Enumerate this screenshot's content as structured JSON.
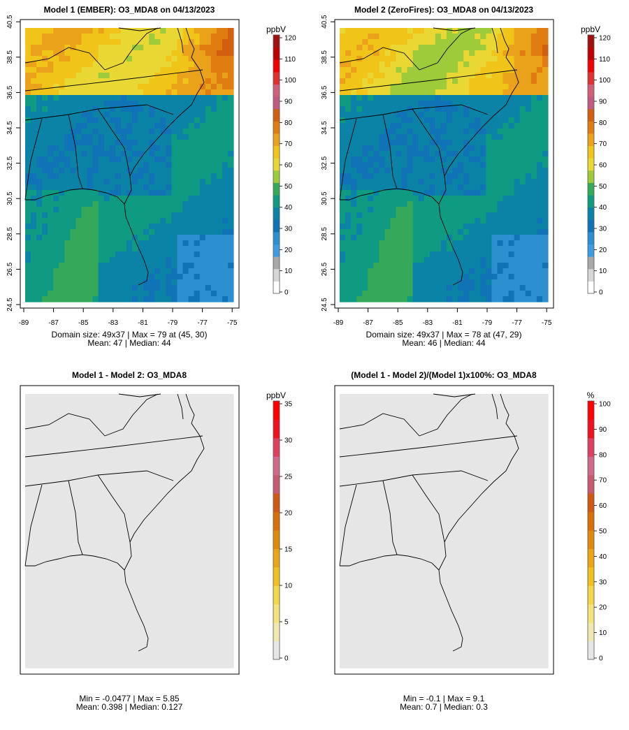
{
  "panels": [
    {
      "id": "p1",
      "title": "Model 1 (EMBER): O3_MDA8 on 04/13/2023",
      "stats_line1": "Domain size: 49x37 | Max = 79 at (45, 30)",
      "stats_line2": "Mean: 47 |  Median: 44",
      "colorbar": {
        "unit": "ppbV",
        "ticks": [
          "0",
          "10",
          "20",
          "30",
          "40",
          "50",
          "60",
          "70",
          "80",
          "90",
          "100",
          "110",
          "120"
        ],
        "max": 120,
        "colors": [
          "#ffffff",
          "#d6d6d6",
          "#a8a8a8",
          "#3e9be0",
          "#2b8fd0",
          "#0f73b6",
          "#0a83a6",
          "#0f9b82",
          "#35a85a",
          "#9dcb3a",
          "#e9d733",
          "#f0c419",
          "#e9a21a",
          "#e07d10",
          "#d06010",
          "#c05a80",
          "#d0607a",
          "#e03030",
          "#f00000",
          "#c00000",
          "#a01010"
        ]
      },
      "field": "model1"
    },
    {
      "id": "p2",
      "title": "Model 2 (ZeroFires): O3_MDA8 on 04/13/2023",
      "stats_line1": "Domain size: 49x37 | Max = 78 at (47, 29)",
      "stats_line2": "Mean: 46 |  Median: 44",
      "colorbar": {
        "unit": "ppbV",
        "ticks": [
          "0",
          "10",
          "20",
          "30",
          "40",
          "50",
          "60",
          "70",
          "80",
          "90",
          "100",
          "110",
          "120"
        ],
        "max": 120,
        "colors": [
          "#ffffff",
          "#d6d6d6",
          "#a8a8a8",
          "#3e9be0",
          "#2b8fd0",
          "#0f73b6",
          "#0a83a6",
          "#0f9b82",
          "#35a85a",
          "#9dcb3a",
          "#e9d733",
          "#f0c419",
          "#e9a21a",
          "#e07d10",
          "#d06010",
          "#c05a80",
          "#d0607a",
          "#e03030",
          "#f00000",
          "#c00000",
          "#a01010"
        ]
      },
      "field": "model2"
    },
    {
      "id": "p3",
      "title": "Model 1 - Model 2: O3_MDA8",
      "stats_line1": "Min = -0.0477 | Max = 5.85",
      "stats_line2": "Mean: 0.398 |  Median: 0.127",
      "colorbar": {
        "unit": "ppbV",
        "ticks": [
          "0",
          "5",
          "10",
          "15",
          "20",
          "25",
          "30",
          "35"
        ],
        "max": 35,
        "colors": [
          "#e6e6e6",
          "#efe9b0",
          "#f4e37a",
          "#f4d64a",
          "#f0c020",
          "#e9a614",
          "#e08a0c",
          "#d87008",
          "#d05a14",
          "#c85a70",
          "#d06a8a",
          "#e04060",
          "#f01020",
          "#ff0000"
        ]
      },
      "field": "diff"
    },
    {
      "id": "p4",
      "title": "(Model 1 - Model 2)/(Model 1)x100%: O3_MDA8",
      "stats_line1": "Min = -0.1 | Max = 9.1",
      "stats_line2": "Mean: 0.7 |  Median: 0.3",
      "colorbar": {
        "unit": "%",
        "ticks": [
          "0",
          "10",
          "20",
          "30",
          "40",
          "50",
          "60",
          "70",
          "80",
          "90",
          "100"
        ],
        "max": 100,
        "colors": [
          "#e6e6e6",
          "#efe9b0",
          "#f4e37a",
          "#f4d64a",
          "#f0c020",
          "#e9a614",
          "#e08a0c",
          "#d87008",
          "#d05a14",
          "#c85a70",
          "#d06a8a",
          "#e04060",
          "#f01020",
          "#ff0000"
        ]
      },
      "field": "pct"
    }
  ],
  "x_tick_labels": [
    "-89",
    "-87",
    "-85",
    "-83",
    "-81",
    "-79",
    "-77",
    "-75"
  ],
  "y_tick_labels": [
    "24.5",
    "26.5",
    "28.5",
    "30.5",
    "32.5",
    "34.5",
    "36.5",
    "38.5",
    "40.5"
  ],
  "colors": {
    "frame": "#000000",
    "outline": "#000000",
    "background": "#ffffff"
  }
}
